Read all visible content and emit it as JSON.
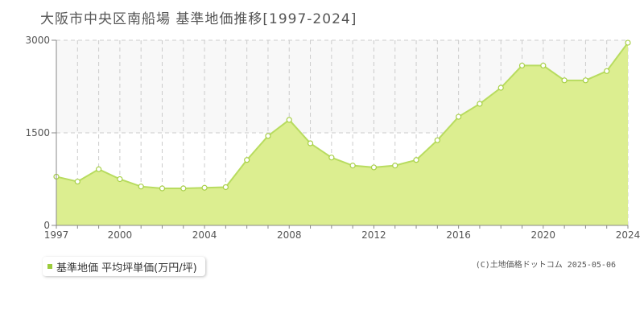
{
  "colors": {
    "area_fill": "#dcee90",
    "line": "#b8dc60",
    "marker_stroke": "#a8d048",
    "band": "#f8f8f8",
    "grid": "#cccccc",
    "axis": "#888888",
    "legend_swatch": "#9ccc3c"
  },
  "legend_label": "基準地価 平均坪単価(万円/坪)",
  "copyright": "(C)土地価格ドットコム 2025-05-06",
  "chart_data": {
    "type": "area",
    "title": "大阪市中央区南船場 基準地価推移[1997-2024]",
    "series": [
      {
        "name": "基準地価 平均坪単価(万円/坪)",
        "values": [
          790,
          710,
          910,
          750,
          630,
          600,
          600,
          610,
          620,
          1060,
          1450,
          1710,
          1330,
          1100,
          970,
          940,
          970,
          1060,
          1380,
          1760,
          1970,
          2230,
          2590,
          2590,
          2350,
          2350,
          2500,
          2960
        ]
      }
    ],
    "x": [
      1997,
      1998,
      1999,
      2000,
      2001,
      2002,
      2003,
      2004,
      2005,
      2006,
      2007,
      2008,
      2009,
      2010,
      2011,
      2012,
      2013,
      2014,
      2015,
      2016,
      2017,
      2018,
      2019,
      2020,
      2021,
      2022,
      2023,
      2024
    ],
    "x_tick_labels": [
      "1997",
      "2000",
      "2004",
      "2008",
      "2012",
      "2016",
      "2020",
      "2024"
    ],
    "y_tick_labels": [
      "0",
      "1500",
      "3000"
    ],
    "xlim": [
      1997,
      2024
    ],
    "ylim": [
      0,
      3000
    ],
    "grid": true,
    "legend_position": "bottom-left"
  }
}
